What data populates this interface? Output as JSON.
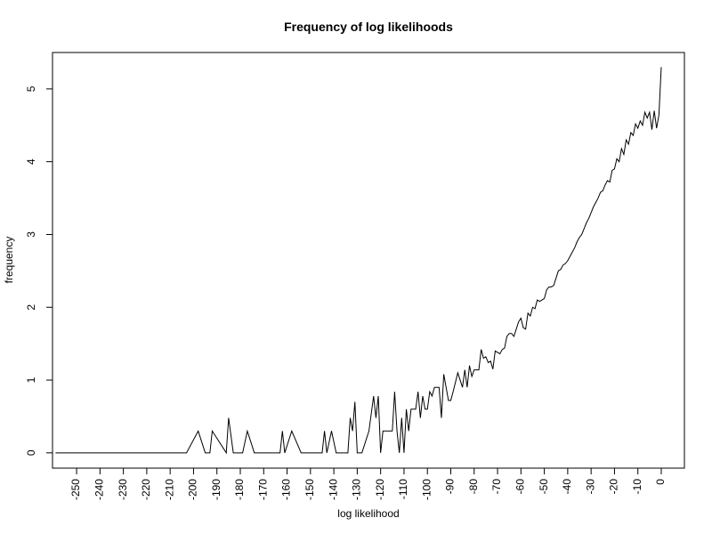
{
  "chart_data": {
    "type": "line",
    "title": "Frequency of log likelihoods",
    "x_label": "log likelihood",
    "y_label": "frequency",
    "color": "#000000",
    "x": [
      -259,
      -203,
      -198,
      -195,
      -193,
      -192,
      -186,
      -185,
      -183,
      -179,
      -177,
      -174,
      -163,
      -162,
      -161,
      -158,
      -154,
      -145,
      -144,
      -143,
      -141,
      -139,
      -134,
      -133,
      -132,
      -131,
      -130,
      -128,
      -125,
      -123,
      -122,
      -121,
      -120,
      -119,
      -115,
      -114,
      -113,
      -112,
      -111,
      -110,
      -109,
      -108,
      -107,
      -105,
      -104,
      -103,
      -102,
      -101,
      -100,
      -99,
      -98,
      -97,
      -95,
      -94,
      -93,
      -92,
      -91,
      -90,
      -89,
      -87,
      -86,
      -85,
      -84,
      -83,
      -82,
      -81,
      -80,
      -78,
      -77,
      -76,
      -75,
      -74,
      -73,
      -72,
      -71,
      -70,
      -69,
      -68,
      -67,
      -66,
      -65,
      -64,
      -63,
      -62,
      -61,
      -60,
      -59,
      -58,
      -57,
      -56,
      -55,
      -54,
      -53,
      -52,
      -51,
      -50,
      -49,
      -48,
      -47,
      -46,
      -45,
      -44,
      -43,
      -42,
      -41,
      -40,
      -39,
      -38,
      -37,
      -36,
      -35,
      -34,
      -33,
      -32,
      -31,
      -30,
      -29,
      -28,
      -27,
      -26,
      -25,
      -24,
      -23,
      -22,
      -21,
      -20,
      -19,
      -18,
      -17,
      -16,
      -15,
      -14,
      -13,
      -12,
      -11,
      -10,
      -9,
      -8,
      -7,
      -6,
      -5,
      -4,
      -3,
      -2,
      -1,
      0
    ],
    "values": [
      0,
      0,
      0.3,
      0,
      0,
      0.3,
      0,
      0.48,
      0,
      0,
      0.3,
      0,
      0,
      0.3,
      0,
      0.3,
      0,
      0,
      0.3,
      0,
      0.3,
      0,
      0,
      0.48,
      0.3,
      0.7,
      0,
      0,
      0.3,
      0.78,
      0.48,
      0.78,
      0,
      0.3,
      0.3,
      0.84,
      0.3,
      0,
      0.48,
      0,
      0.6,
      0.3,
      0.6,
      0.6,
      0.84,
      0.48,
      0.78,
      0.6,
      0.6,
      0.84,
      0.78,
      0.9,
      0.9,
      0.48,
      1.08,
      0.9,
      0.72,
      0.72,
      0.84,
      1.1,
      1.0,
      0.9,
      1.14,
      0.9,
      1.2,
      1.05,
      1.14,
      1.14,
      1.42,
      1.3,
      1.32,
      1.24,
      1.26,
      1.15,
      1.4,
      1.38,
      1.36,
      1.42,
      1.44,
      1.6,
      1.64,
      1.64,
      1.6,
      1.7,
      1.8,
      1.85,
      1.72,
      1.7,
      1.92,
      1.88,
      2.0,
      1.98,
      2.1,
      2.08,
      2.1,
      2.12,
      2.24,
      2.28,
      2.28,
      2.3,
      2.4,
      2.5,
      2.52,
      2.58,
      2.6,
      2.64,
      2.7,
      2.76,
      2.82,
      2.9,
      2.96,
      3.0,
      3.08,
      3.16,
      3.22,
      3.3,
      3.38,
      3.44,
      3.5,
      3.58,
      3.6,
      3.68,
      3.74,
      3.72,
      3.88,
      3.9,
      4.04,
      4.0,
      4.18,
      4.1,
      4.3,
      4.24,
      4.4,
      4.36,
      4.52,
      4.46,
      4.56,
      4.5,
      4.68,
      4.6,
      4.68,
      4.44,
      4.7,
      4.46,
      4.64,
      5.3
    ],
    "xlim": [
      -260.3,
      9.9
    ],
    "ylim": [
      -0.21,
      5.5
    ],
    "xticks": [
      -250,
      -240,
      -230,
      -220,
      -210,
      -200,
      -190,
      -180,
      -170,
      -160,
      -150,
      -140,
      -130,
      -120,
      -110,
      -100,
      -90,
      -80,
      -70,
      -60,
      -50,
      -40,
      -30,
      -20,
      -10,
      0
    ],
    "yticks": [
      0,
      1,
      2,
      3,
      4,
      5
    ]
  }
}
